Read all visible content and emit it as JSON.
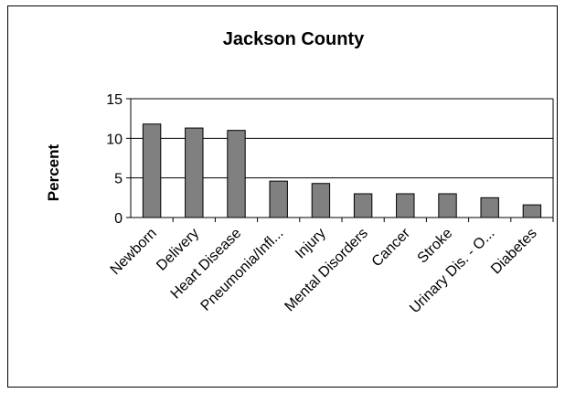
{
  "chart_data": {
    "type": "bar",
    "title": "Jackson County",
    "xlabel": "",
    "ylabel": "Percent",
    "ylim": [
      0,
      15
    ],
    "yticks": [
      0,
      5,
      10,
      15
    ],
    "grid": true,
    "legend": "none",
    "colors": {
      "bar": "#808080",
      "bar_edge": "#000000",
      "grid": "#000000",
      "plot_bg": "#ffffff"
    },
    "categories": [
      "Newborn",
      "Delivery",
      "Heart Disease",
      "Pneumonia/Infl...",
      "Injury",
      "Mental Disorders",
      "Cancer",
      "Stroke",
      "Urinary Dis. - O...",
      "Diabetes"
    ],
    "values": [
      11.8,
      11.3,
      11.0,
      4.6,
      4.3,
      3.0,
      3.0,
      3.0,
      2.5,
      1.6
    ]
  }
}
